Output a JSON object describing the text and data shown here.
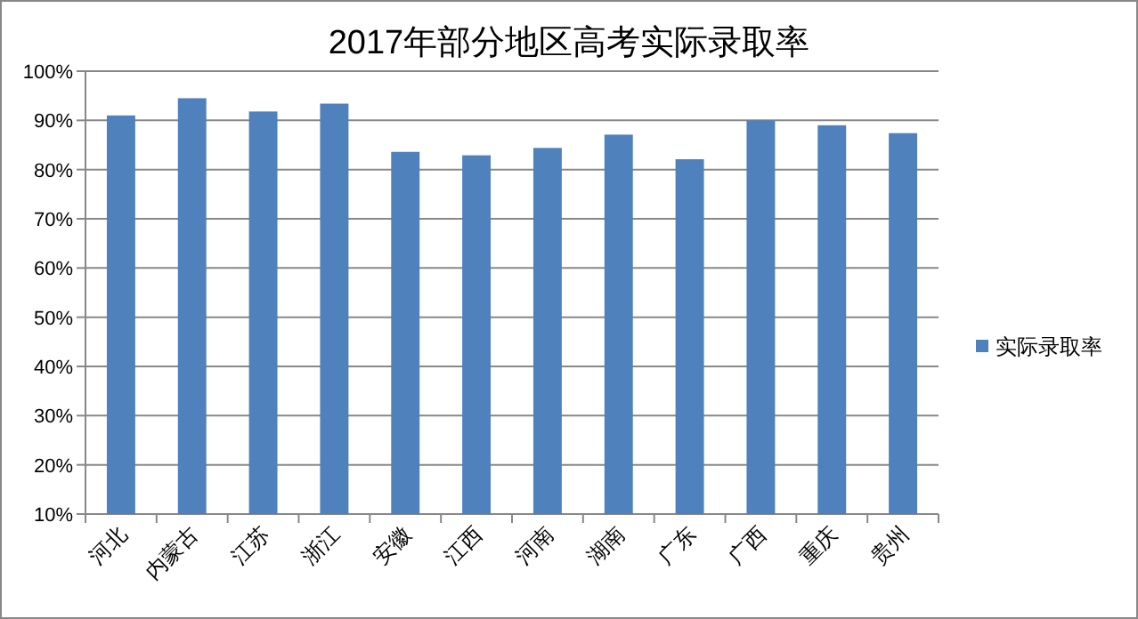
{
  "chart_data": {
    "type": "bar",
    "title": "2017年部分地区高考实际录取率",
    "categories": [
      "河北",
      "内蒙古",
      "江苏",
      "浙江",
      "安徽",
      "江西",
      "河南",
      "湖南",
      "广东",
      "广西",
      "重庆",
      "贵州"
    ],
    "series": [
      {
        "name": "实际录取率",
        "color": "#4f81bd",
        "values": [
          91.0,
          94.5,
          91.8,
          93.4,
          83.6,
          82.9,
          84.4,
          87.1,
          82.1,
          90.0,
          89.0,
          87.4
        ]
      }
    ],
    "ylim": [
      10,
      100
    ],
    "yticks": [
      {
        "value": 10,
        "label": "10%"
      },
      {
        "value": 20,
        "label": "20%"
      },
      {
        "value": 30,
        "label": "30%"
      },
      {
        "value": 40,
        "label": "40%"
      },
      {
        "value": 50,
        "label": "50%"
      },
      {
        "value": 60,
        "label": "60%"
      },
      {
        "value": 70,
        "label": "70%"
      },
      {
        "value": 80,
        "label": "80%"
      },
      {
        "value": 90,
        "label": "90%"
      },
      {
        "value": 100,
        "label": "100%"
      }
    ],
    "grid": "y",
    "legend": "right"
  }
}
